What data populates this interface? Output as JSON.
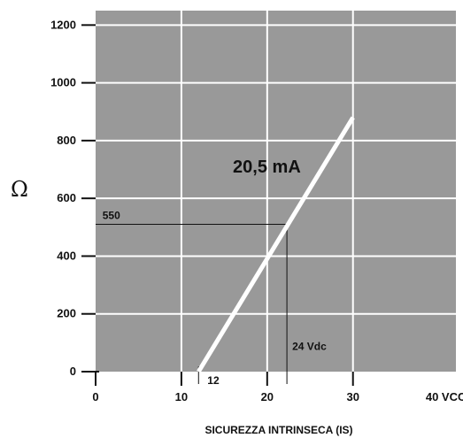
{
  "chart_data": {
    "type": "line",
    "title": "",
    "xlabel": "SICUREZZA INTRINSECA (IS)",
    "ylabel": "Ω",
    "xlim": [
      0,
      40
    ],
    "ylim": [
      0,
      1250
    ],
    "grid": true,
    "background": "#999999",
    "grid_color": "#ffffff",
    "line_color": "#ffffff",
    "x_ticks": [
      "0",
      "10",
      "20",
      "30",
      "40 VCC"
    ],
    "y_ticks": [
      "0",
      "200",
      "400",
      "600",
      "800",
      "1000",
      "1200"
    ],
    "series": [
      {
        "name": "20,5 mA",
        "x": [
          12,
          30
        ],
        "y": [
          0,
          880
        ]
      }
    ],
    "annotations": {
      "y_value_label": "550",
      "x_value_label": "24 Vdc",
      "min_voltage_label": "12",
      "ref_point": {
        "x": 22.3,
        "y": 510
      },
      "min_voltage_x": 12
    }
  }
}
